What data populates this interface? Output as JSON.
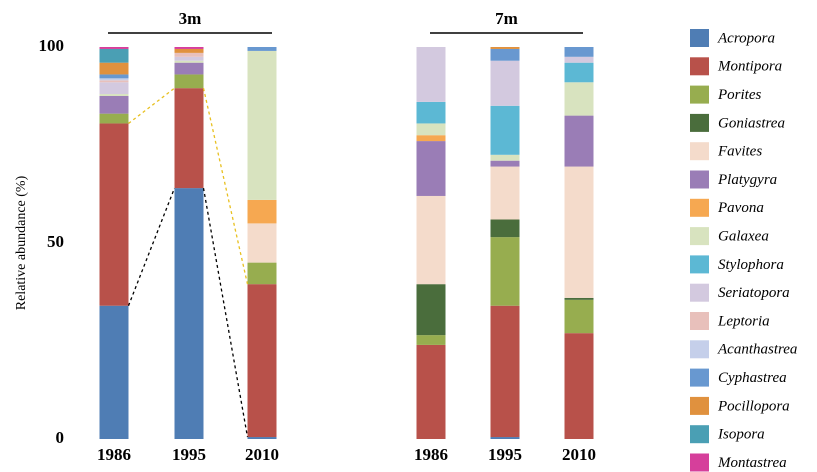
{
  "chart_data": {
    "type": "bar",
    "stacked": true,
    "panel_titles": [
      "3m",
      "7m"
    ],
    "ylabel": "Relative abundance (%)",
    "categories": [
      [
        "1986",
        "1995",
        "2010"
      ],
      [
        "1986",
        "1995",
        "2010"
      ]
    ],
    "ylim": [
      0,
      100
    ],
    "yticks": [
      0,
      50,
      100
    ],
    "series": [
      {
        "name": "Acropora",
        "color": "#4f7db4",
        "values": [
          [
            34,
            64,
            0.5
          ],
          [
            0,
            0.5,
            0
          ]
        ]
      },
      {
        "name": "Montipora",
        "color": "#b8514a",
        "values": [
          [
            46.5,
            25.5,
            39
          ],
          [
            24,
            33.5,
            27
          ]
        ]
      },
      {
        "name": "Porites",
        "color": "#97ad4f",
        "values": [
          [
            2.5,
            3.5,
            5.5
          ],
          [
            2.5,
            17.5,
            8.5
          ]
        ]
      },
      {
        "name": "Goniastrea",
        "color": "#4a6d3c",
        "values": [
          [
            0,
            0,
            0
          ],
          [
            13,
            4.5,
            0.5
          ]
        ]
      },
      {
        "name": "Favites",
        "color": "#f4dbcb",
        "values": [
          [
            0,
            0,
            10
          ],
          [
            22.5,
            13.5,
            33.5
          ]
        ]
      },
      {
        "name": "Platygyra",
        "color": "#9a7db6",
        "values": [
          [
            4.5,
            3,
            0
          ],
          [
            14,
            1.5,
            13
          ]
        ]
      },
      {
        "name": "Pavona",
        "color": "#f6a851",
        "values": [
          [
            0,
            0,
            6
          ],
          [
            1.5,
            0,
            0
          ]
        ]
      },
      {
        "name": "Galaxea",
        "color": "#d8e3bf",
        "values": [
          [
            0.5,
            0.5,
            38
          ],
          [
            3,
            1.5,
            8.5
          ]
        ]
      },
      {
        "name": "Stylophora",
        "color": "#5cb8d4",
        "values": [
          [
            0,
            0,
            0
          ],
          [
            5.5,
            12.5,
            5
          ]
        ]
      },
      {
        "name": "Seriatopora",
        "color": "#d3c9df",
        "values": [
          [
            3,
            1,
            0
          ],
          [
            14,
            11.5,
            1.5
          ]
        ]
      },
      {
        "name": "Leptoria",
        "color": "#e8c0bb",
        "values": [
          [
            0.5,
            1,
            0
          ],
          [
            0,
            0,
            0
          ]
        ]
      },
      {
        "name": "Acanthastrea",
        "color": "#c5cfea",
        "values": [
          [
            0.5,
            0,
            0
          ],
          [
            0,
            0,
            0
          ]
        ]
      },
      {
        "name": "Cyphastrea",
        "color": "#6898d0",
        "values": [
          [
            1,
            0,
            1
          ],
          [
            0,
            3,
            2.5
          ]
        ]
      },
      {
        "name": "Pocillopora",
        "color": "#e0913e",
        "values": [
          [
            3,
            1,
            0
          ],
          [
            0,
            0.5,
            0
          ]
        ]
      },
      {
        "name": "Isopora",
        "color": "#4a9fb4",
        "values": [
          [
            3.5,
            0,
            0
          ],
          [
            0,
            0,
            0
          ]
        ]
      },
      {
        "name": "Montastrea",
        "color": "#d63f9b",
        "values": [
          [
            0.5,
            0.5,
            0
          ],
          [
            0,
            0,
            0
          ]
        ]
      }
    ]
  }
}
